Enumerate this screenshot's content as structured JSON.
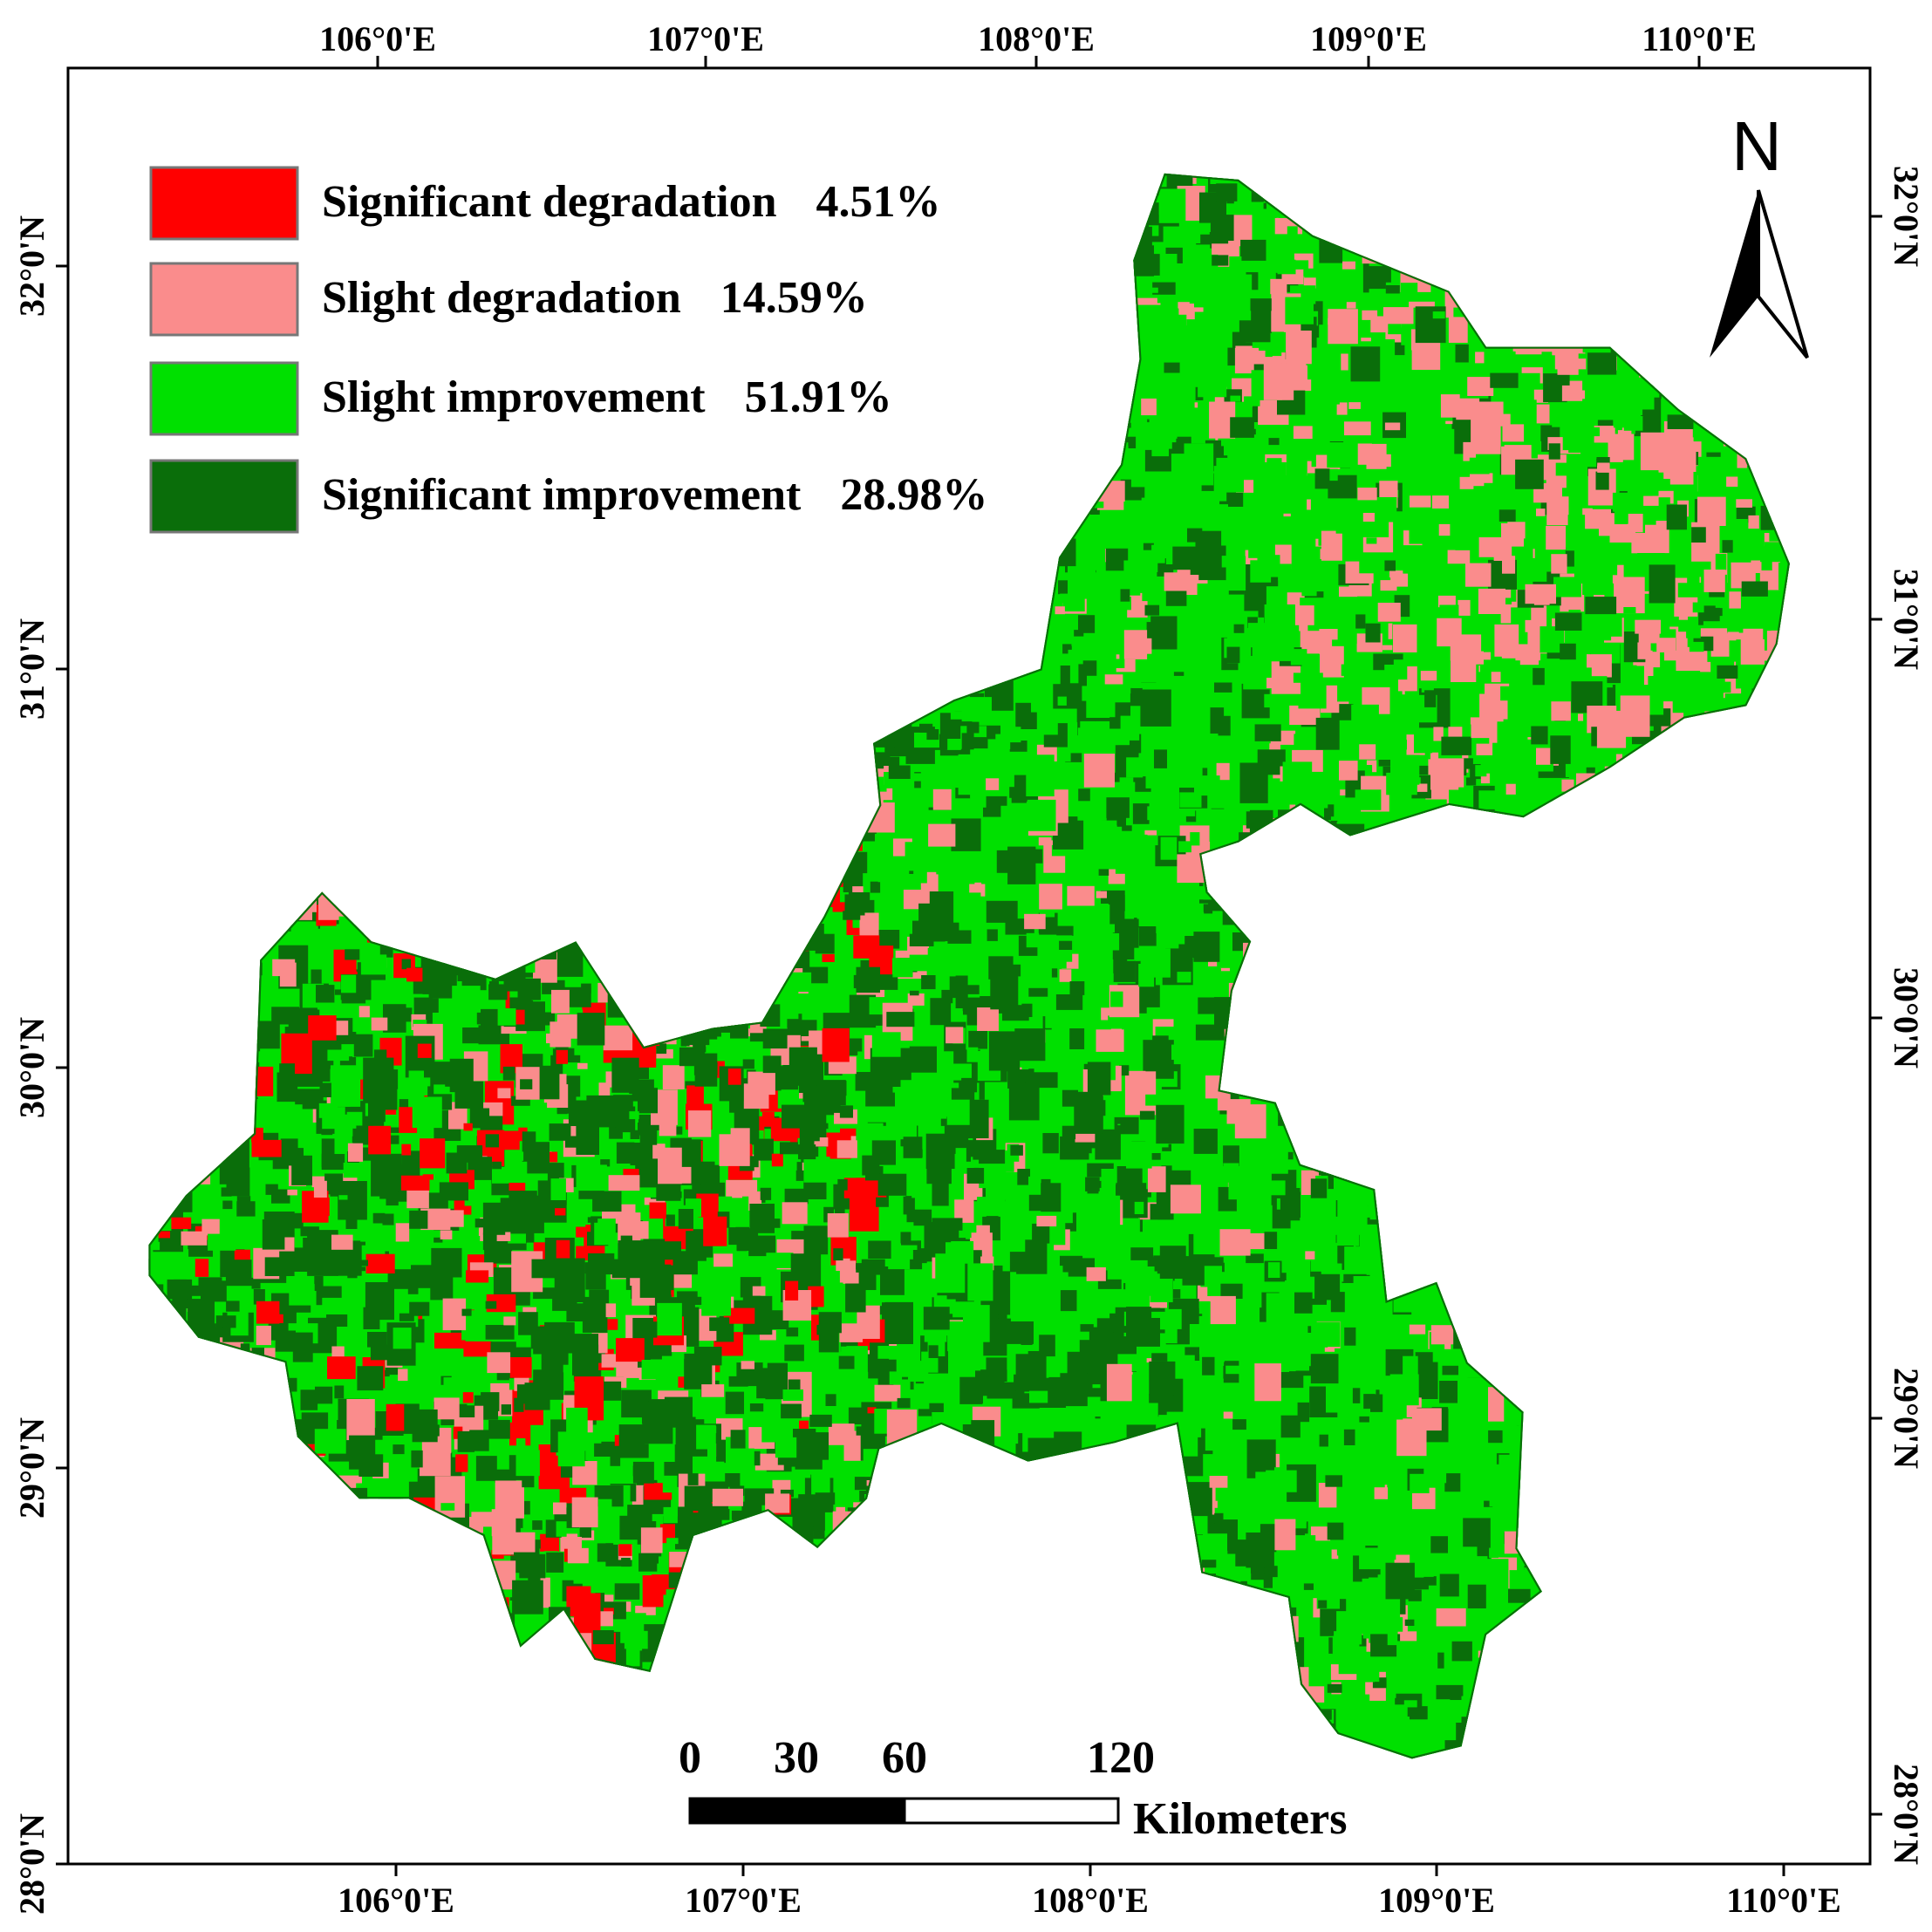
{
  "map": {
    "legend": [
      {
        "label": "Significant degradation",
        "percent": "4.51%",
        "color": "#ff0000"
      },
      {
        "label": "Slight degradation",
        "percent": "14.59%",
        "color": "#fa8c8c"
      },
      {
        "label": "Slight improvement",
        "percent": "51.91%",
        "color": "#00e000"
      },
      {
        "label": "Significant improvement",
        "percent": "28.98%",
        "color": "#0a6e0a"
      }
    ],
    "top_labels": [
      "106°0'E",
      "107°0'E",
      "108°0'E",
      "109°0'E",
      "110°0'E"
    ],
    "bottom_labels": [
      "106°0'E",
      "107°0'E",
      "108°0'E",
      "109°0'E",
      "110°0'E"
    ],
    "left_labels": [
      "32°0'N",
      "31°0'N",
      "30°0'N",
      "29°0'N",
      "28°0'N"
    ],
    "right_labels": [
      "32°0'N",
      "31°0'N",
      "30°0'N",
      "29°0'N",
      "28°0'N"
    ],
    "north": "N",
    "scale_bar": {
      "labels": [
        "0",
        "30",
        "60",
        "120"
      ],
      "unit": "Kilometers"
    }
  }
}
